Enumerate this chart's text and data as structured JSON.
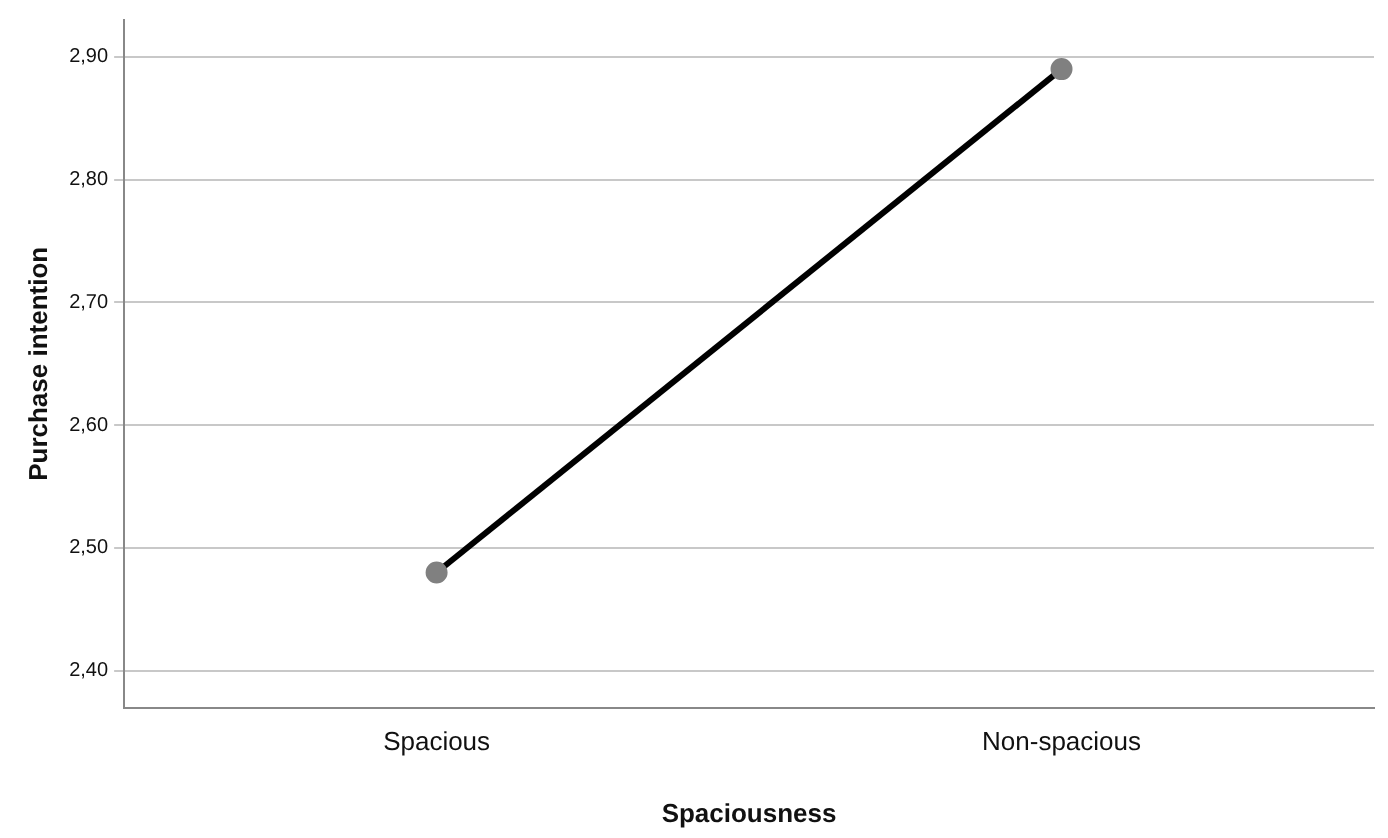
{
  "chart_data": {
    "type": "line",
    "xlabel": "Spaciousness",
    "ylabel": "Purchase intention",
    "categories": [
      "Spacious",
      "Non-spacious"
    ],
    "series": [
      {
        "color": "#000000",
        "values": [
          2.48,
          2.89
        ]
      }
    ],
    "ylim": [
      2.37,
      2.93
    ],
    "yticks": [
      {
        "value": 2.4,
        "label": "2,40"
      },
      {
        "value": 2.5,
        "label": "2,50"
      },
      {
        "value": 2.6,
        "label": "2,60"
      },
      {
        "value": 2.7,
        "label": "2,70"
      },
      {
        "value": 2.8,
        "label": "2,80"
      },
      {
        "value": 2.9,
        "label": "2,90"
      }
    ],
    "grid": "y",
    "legend": false,
    "marker": "circle",
    "line_style": "solid"
  }
}
